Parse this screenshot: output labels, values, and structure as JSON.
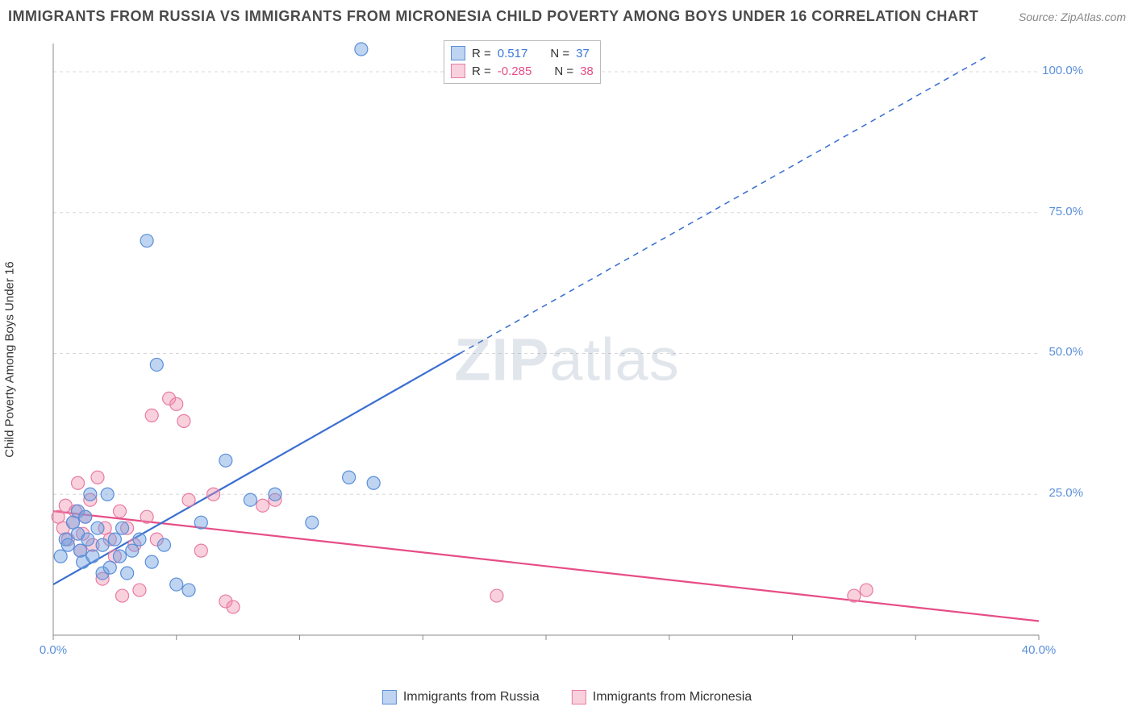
{
  "header": {
    "title": "IMMIGRANTS FROM RUSSIA VS IMMIGRANTS FROM MICRONESIA CHILD POVERTY AMONG BOYS UNDER 16 CORRELATION CHART",
    "source": "Source: ZipAtlas.com"
  },
  "axes": {
    "y_label": "Child Poverty Among Boys Under 16",
    "x_min": 0,
    "x_max": 40,
    "y_min": 0,
    "y_max": 105,
    "x_ticks": [
      0,
      5,
      10,
      15,
      20,
      25,
      30,
      35,
      40
    ],
    "x_tick_labels": {
      "0": "0.0%",
      "40": "40.0%"
    },
    "y_ticks": [
      25,
      50,
      75,
      100
    ],
    "y_tick_labels": {
      "25": "25.0%",
      "50": "50.0%",
      "75": "75.0%",
      "100": "100.0%"
    },
    "grid_color": "#d8d8d8",
    "axis_color": "#888888",
    "tick_label_color": "#5b8fd9"
  },
  "series": {
    "russia": {
      "label": "Immigrants from Russia",
      "color_fill": "rgba(110,160,225,0.45)",
      "color_stroke": "#5b8fd9",
      "r_value": "0.517",
      "n_value": "37",
      "r_color": "#3b77d8",
      "trend": {
        "x1": 0,
        "y1": 9,
        "x2_solid": 16.5,
        "y2_solid": 50,
        "x2_dash": 38,
        "y2_dash": 103,
        "stroke": "#3b6fd1",
        "width": 2.2
      },
      "points": [
        [
          0.3,
          14
        ],
        [
          0.5,
          17
        ],
        [
          0.6,
          16
        ],
        [
          0.8,
          20
        ],
        [
          1.0,
          18
        ],
        [
          1.0,
          22
        ],
        [
          1.1,
          15
        ],
        [
          1.2,
          13
        ],
        [
          1.3,
          21
        ],
        [
          1.4,
          17
        ],
        [
          1.5,
          25
        ],
        [
          1.6,
          14
        ],
        [
          1.8,
          19
        ],
        [
          2.0,
          16
        ],
        [
          2.0,
          11
        ],
        [
          2.2,
          25
        ],
        [
          2.3,
          12
        ],
        [
          2.5,
          17
        ],
        [
          2.7,
          14
        ],
        [
          2.8,
          19
        ],
        [
          3.0,
          11
        ],
        [
          3.2,
          15
        ],
        [
          3.5,
          17
        ],
        [
          3.8,
          70
        ],
        [
          4.0,
          13
        ],
        [
          4.2,
          48
        ],
        [
          4.5,
          16
        ],
        [
          5.0,
          9
        ],
        [
          5.5,
          8
        ],
        [
          6.0,
          20
        ],
        [
          7.0,
          31
        ],
        [
          8.0,
          24
        ],
        [
          9.0,
          25
        ],
        [
          10.5,
          20
        ],
        [
          12.0,
          28
        ],
        [
          12.5,
          104
        ],
        [
          13.0,
          27
        ]
      ]
    },
    "micronesia": {
      "label": "Immigrants from Micronesia",
      "color_fill": "rgba(238,140,170,0.40)",
      "color_stroke": "#e97ba3",
      "r_value": "-0.285",
      "n_value": "38",
      "r_color": "#e64d86",
      "trend": {
        "x1": 0,
        "y1": 22,
        "x2": 40,
        "y2": 2.5,
        "stroke": "#e64d86",
        "width": 2.2
      },
      "points": [
        [
          0.2,
          21
        ],
        [
          0.4,
          19
        ],
        [
          0.5,
          23
        ],
        [
          0.6,
          17
        ],
        [
          0.8,
          20
        ],
        [
          0.9,
          22
        ],
        [
          1.0,
          27
        ],
        [
          1.1,
          15
        ],
        [
          1.2,
          18
        ],
        [
          1.3,
          21
        ],
        [
          1.5,
          24
        ],
        [
          1.6,
          16
        ],
        [
          1.8,
          28
        ],
        [
          2.0,
          10
        ],
        [
          2.1,
          19
        ],
        [
          2.3,
          17
        ],
        [
          2.5,
          14
        ],
        [
          2.7,
          22
        ],
        [
          2.8,
          7
        ],
        [
          3.0,
          19
        ],
        [
          3.3,
          16
        ],
        [
          3.5,
          8
        ],
        [
          3.8,
          21
        ],
        [
          4.0,
          39
        ],
        [
          4.2,
          17
        ],
        [
          4.7,
          42
        ],
        [
          5.0,
          41
        ],
        [
          5.3,
          38
        ],
        [
          5.5,
          24
        ],
        [
          6.0,
          15
        ],
        [
          6.5,
          25
        ],
        [
          7.0,
          6
        ],
        [
          7.3,
          5
        ],
        [
          8.5,
          23
        ],
        [
          9.0,
          24
        ],
        [
          18.0,
          7
        ],
        [
          32.5,
          7
        ],
        [
          33.0,
          8
        ]
      ]
    }
  },
  "legend_top": {
    "r_label": "R =",
    "n_label": "N ="
  },
  "legend_bottom": {
    "russia": "Immigrants from Russia",
    "micronesia": "Immigrants from Micronesia"
  },
  "watermark": {
    "zip": "ZIP",
    "atlas": "atlas"
  },
  "style": {
    "marker_radius": 8,
    "background": "#ffffff"
  }
}
